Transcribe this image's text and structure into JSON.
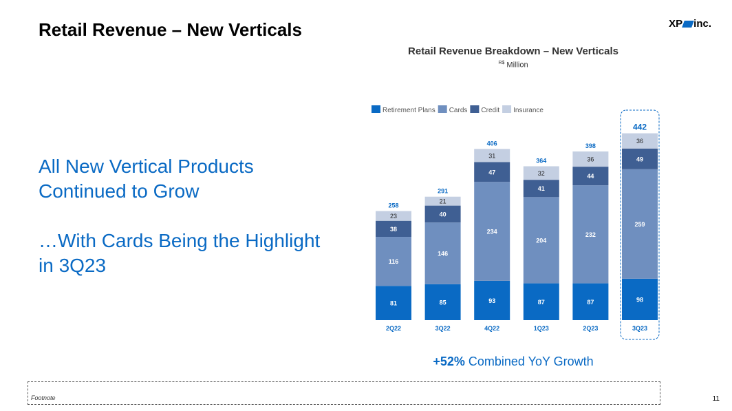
{
  "page": {
    "title": "Retail Revenue – New Verticals",
    "logo_text_left": "XP",
    "logo_text_right": "inc.",
    "headline_1": "All New Vertical Products Continued to Grow",
    "headline_2": "…With Cards Being the Highlight in 3Q23",
    "growth_value": "+52%",
    "growth_text": "Combined YoY Growth",
    "footnote": "Footnote",
    "page_number": "11"
  },
  "colors": {
    "retirement": "#0a6ac4",
    "cards": "#6f8fbf",
    "credit": "#3f5f93",
    "insurance": "#c4cfe2",
    "accent": "#0a6ac4"
  },
  "chart_data": {
    "type": "bar",
    "stacked": true,
    "title": "Retail Revenue Breakdown – New Verticals",
    "unit_prefix": "R$",
    "unit": "Million",
    "categories": [
      "2Q22",
      "3Q22",
      "4Q22",
      "1Q23",
      "2Q23",
      "3Q23"
    ],
    "series": [
      {
        "name": "Retirement Plans",
        "values": [
          81,
          85,
          93,
          87,
          87,
          98
        ]
      },
      {
        "name": "Cards",
        "values": [
          116,
          146,
          234,
          204,
          232,
          259
        ]
      },
      {
        "name": "Credit",
        "values": [
          38,
          40,
          47,
          41,
          44,
          49
        ]
      },
      {
        "name": "Insurance",
        "values": [
          23,
          21,
          31,
          32,
          36,
          36
        ]
      }
    ],
    "totals": [
      258,
      291,
      406,
      364,
      398,
      442
    ],
    "highlighted_category": "3Q23",
    "legend_position": "top-left",
    "grid": false
  }
}
